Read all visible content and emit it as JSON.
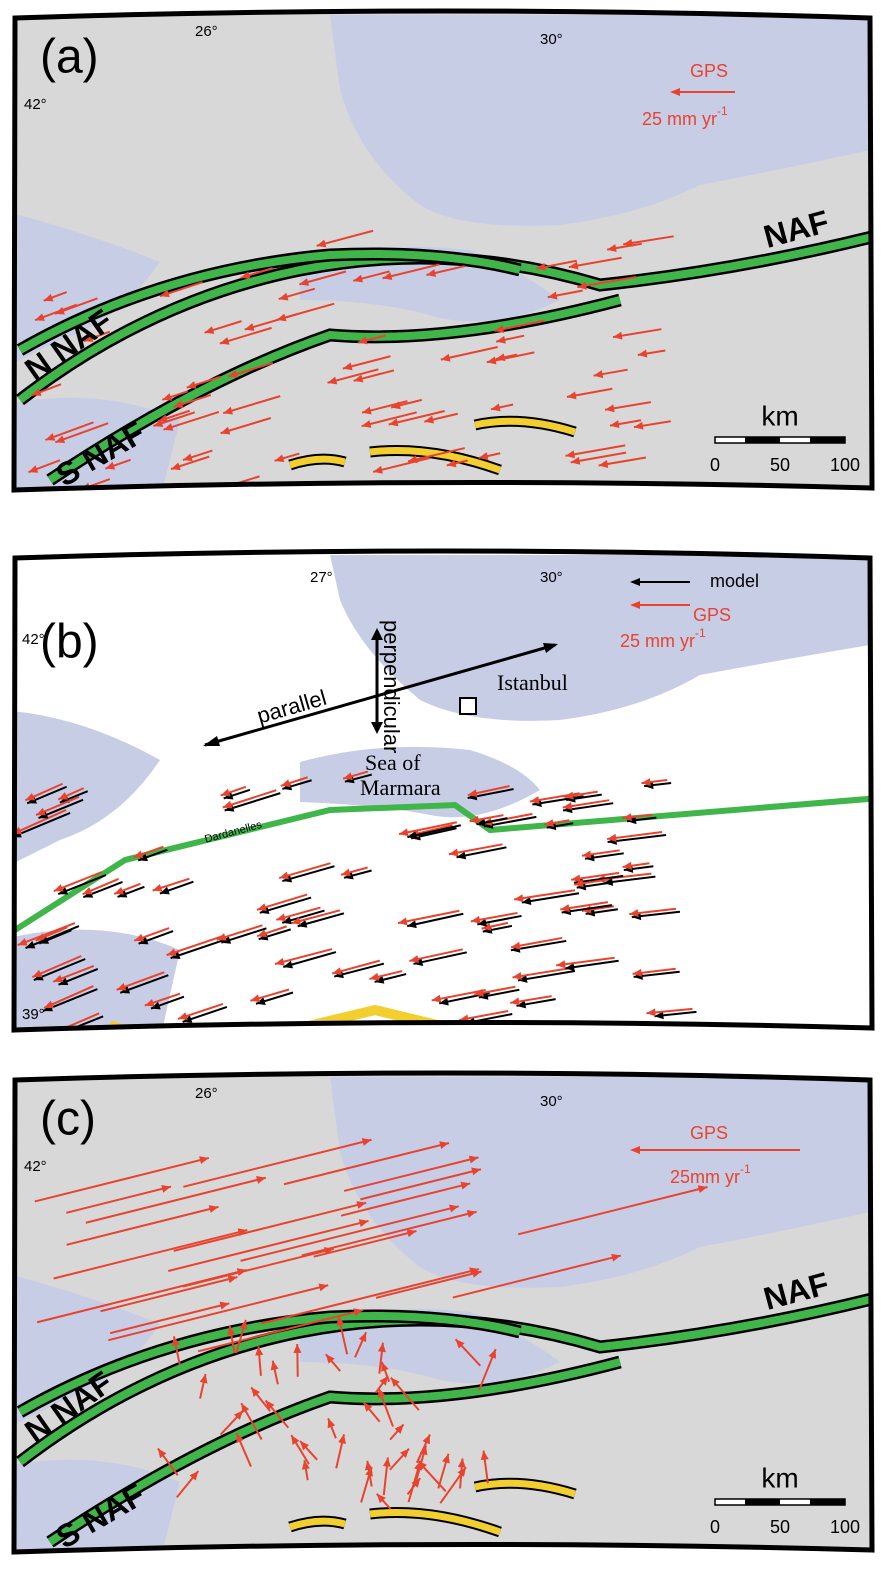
{
  "panels": [
    {
      "label": "(a)",
      "lon_labels": [
        "26°",
        "30°"
      ],
      "lat_labels": [
        "42°"
      ],
      "legend": {
        "gps": "GPS",
        "scale": "25 mm yr",
        "exponent": "-1"
      },
      "faults": [
        "NAF",
        "N NAF",
        "S NAF"
      ],
      "scale_bar": {
        "unit": "km",
        "ticks": [
          "0",
          "50",
          "100"
        ]
      }
    },
    {
      "label": "(b)",
      "lon_labels": [
        "27°",
        "30°"
      ],
      "lat_labels": [
        "42°",
        "39°"
      ],
      "legend": {
        "model": "model",
        "gps": "GPS",
        "scale": "25 mm yr",
        "exponent": "-1"
      },
      "directions": [
        "parallel",
        "perpendicular"
      ],
      "places": [
        "Istanbul",
        "Sea of",
        "Marmara",
        "Dardanelles"
      ]
    },
    {
      "label": "(c)",
      "lon_labels": [
        "26°",
        "30°"
      ],
      "lat_labels": [
        "42°"
      ],
      "legend": {
        "gps": "GPS",
        "scale": "25mm yr",
        "exponent": "-1"
      },
      "faults": [
        "NAF",
        "N NAF",
        "S NAF"
      ],
      "scale_bar": {
        "unit": "km",
        "ticks": [
          "0",
          "50",
          "100"
        ]
      }
    }
  ]
}
